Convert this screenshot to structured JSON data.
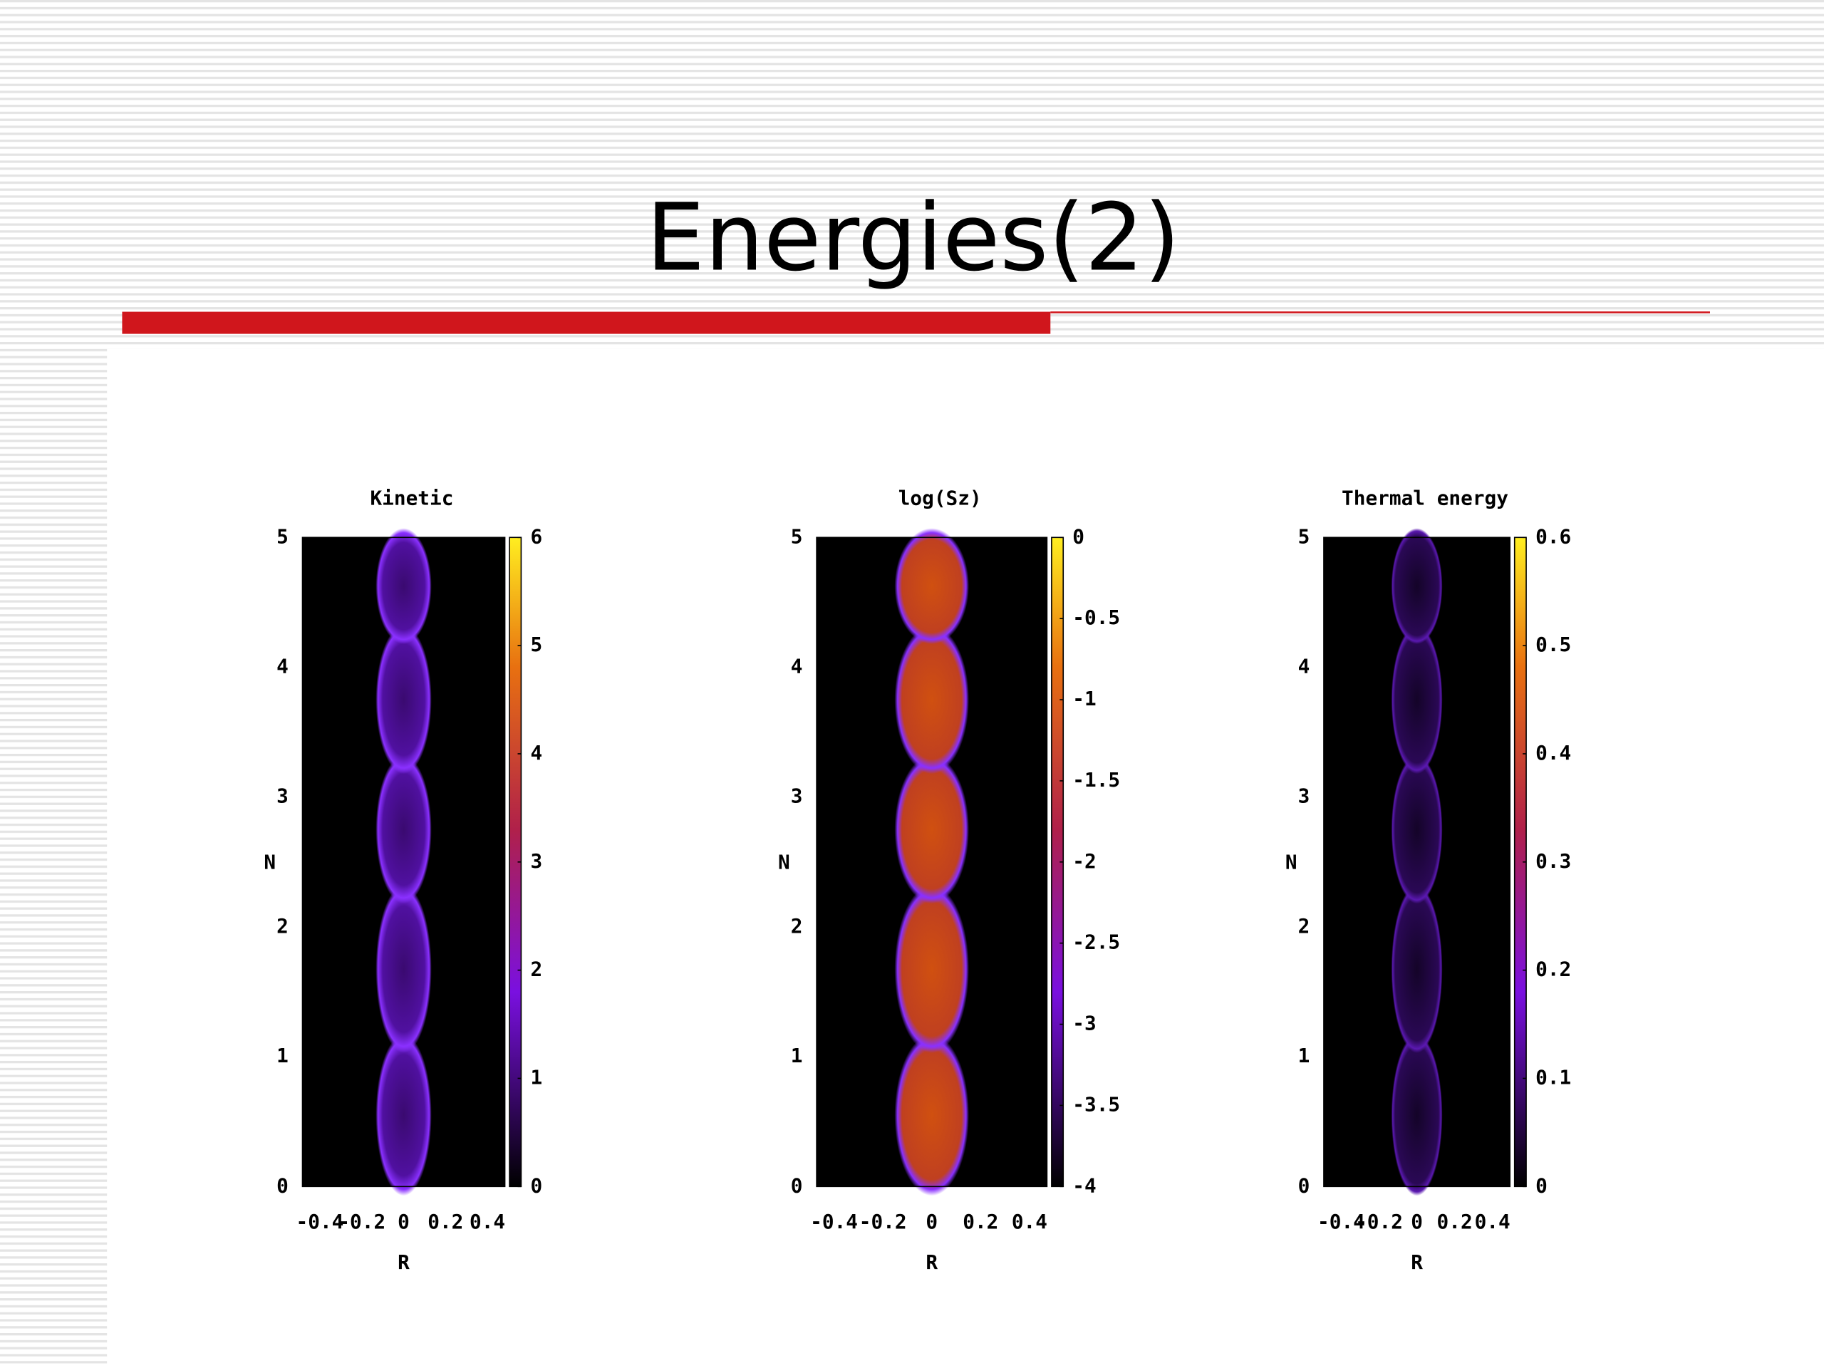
{
  "slide": {
    "title": "Energies(2)",
    "panels": [
      {
        "title": "Kinetic",
        "x_label": "R",
        "y_label": "N",
        "xticks": [
          "-0.4",
          "-0.2",
          "0",
          "0.2",
          "0.4"
        ],
        "yticks": [
          "0",
          "1",
          "2",
          "3",
          "4",
          "5"
        ],
        "colorbar_ticks": [
          "0",
          "1",
          "2",
          "3",
          "4",
          "5",
          "6"
        ]
      },
      {
        "title": "log(Sz)",
        "x_label": "R",
        "y_label": "N",
        "xticks": [
          "-0.4",
          "-0.2",
          "0",
          "0.2",
          "0.4"
        ],
        "yticks": [
          "0",
          "1",
          "2",
          "3",
          "4",
          "5"
        ],
        "colorbar_ticks": [
          "-4",
          "-3.5",
          "-3",
          "-2.5",
          "-2",
          "-1.5",
          "-1",
          "-0.5",
          "0"
        ]
      },
      {
        "title": "Thermal energy",
        "x_label": "R",
        "y_label": "N",
        "xticks": [
          "-0.4",
          "-0.2",
          "0",
          "0.2",
          "0.4"
        ],
        "yticks": [
          "0",
          "1",
          "2",
          "3",
          "4",
          "5"
        ],
        "colorbar_ticks": [
          "0",
          "0.1",
          "0.2",
          "0.3",
          "0.4",
          "0.5",
          "0.6"
        ]
      }
    ]
  }
}
